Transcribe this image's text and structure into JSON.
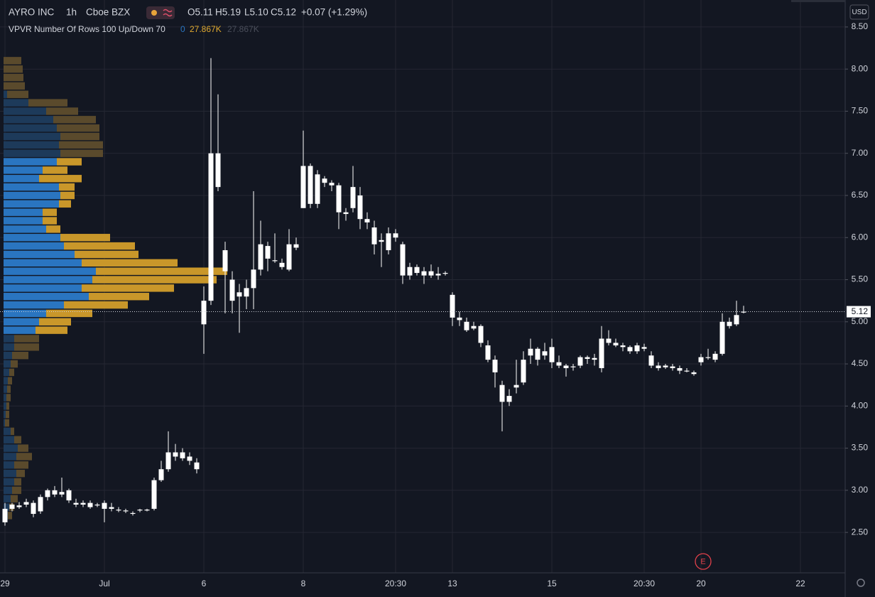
{
  "header": {
    "symbol": "AYRO INC",
    "interval": "1h",
    "exchange": "Cboe BZX",
    "ohlc": [
      "O5.11",
      "H5.19",
      "L5.10",
      "C5.12"
    ],
    "change": "+0.07 (+1.29%)",
    "indicator": "VPVR Number Of Rows 100 Up/Down 70",
    "indicator_values": [
      "0",
      "27.867K",
      "27.867K"
    ],
    "currency": "USD",
    "earnings_marker": "E"
  },
  "chart_data": {
    "type": "candlestick",
    "color": "#ffffff",
    "grid": true,
    "categories": [
      "29",
      null,
      null,
      null,
      null,
      null,
      null,
      null,
      null,
      null,
      null,
      null,
      null,
      null,
      "Jul",
      null,
      null,
      null,
      null,
      null,
      null,
      null,
      null,
      null,
      null,
      null,
      null,
      null,
      "6",
      null,
      null,
      null,
      null,
      null,
      null,
      null,
      null,
      null,
      null,
      null,
      null,
      null,
      "8",
      null,
      null,
      null,
      null,
      null,
      null,
      null,
      null,
      null,
      null,
      null,
      null,
      "20:30",
      null,
      null,
      null,
      null,
      null,
      null,
      null,
      "13",
      null,
      null,
      null,
      null,
      null,
      null,
      null,
      null,
      null,
      null,
      null,
      null,
      null,
      "15",
      null,
      null,
      null,
      null,
      null,
      null,
      null,
      null,
      null,
      null,
      null,
      null,
      "20:30",
      null,
      null,
      null,
      null,
      null,
      null,
      null,
      "20",
      null,
      null,
      null,
      null,
      null,
      null,
      null,
      null,
      null,
      null,
      null,
      null,
      null,
      "22"
    ],
    "open": [
      2.62,
      2.78,
      2.8,
      2.83,
      2.85,
      2.75,
      2.92,
      3.0,
      2.95,
      3.0,
      2.85,
      2.83,
      2.85,
      2.82,
      2.85,
      2.78,
      2.77,
      2.76,
      2.73,
      2.76,
      2.77,
      2.78,
      3.12,
      3.25,
      3.45,
      3.45,
      3.4,
      3.33,
      4.97,
      5.25,
      7.0,
      5.85,
      5.5,
      5.35,
      5.3,
      5.4,
      5.62,
      5.9,
      5.72,
      5.7,
      5.62,
      5.92,
      6.35,
      6.85,
      6.4,
      6.7,
      6.65,
      6.62,
      6.3,
      6.35,
      6.5,
      6.22,
      6.12,
      5.97,
      5.85,
      6.05,
      5.92,
      5.55,
      5.65,
      5.55,
      5.6,
      5.55,
      5.58,
      5.32,
      5.05,
      5.0,
      4.92,
      4.95,
      4.72,
      4.55,
      4.25,
      4.05,
      4.22,
      4.28,
      4.6,
      4.68,
      4.6,
      4.7,
      4.52,
      4.48,
      4.47,
      4.48,
      4.58,
      4.57,
      4.45,
      4.8,
      4.75,
      4.72,
      4.7,
      4.65,
      4.7,
      4.6,
      4.48,
      4.46,
      4.47,
      4.45,
      4.42,
      4.4,
      4.52,
      4.58,
      4.55,
      4.62,
      4.95,
      4.97,
      5.11,
      null,
      null,
      null,
      null,
      null,
      null,
      null,
      null
    ],
    "high": [
      2.85,
      2.85,
      2.86,
      2.9,
      2.88,
      2.95,
      3.02,
      3.05,
      3.15,
      3.02,
      2.9,
      2.88,
      2.88,
      2.85,
      2.88,
      2.85,
      2.8,
      2.78,
      2.75,
      2.78,
      2.78,
      3.15,
      3.35,
      3.7,
      3.55,
      3.5,
      3.45,
      3.38,
      5.42,
      8.13,
      7.7,
      5.95,
      5.6,
      5.45,
      5.5,
      6.55,
      6.2,
      5.95,
      6.05,
      5.75,
      6.1,
      6.0,
      7.27,
      6.88,
      6.8,
      6.73,
      6.68,
      6.65,
      6.35,
      6.85,
      6.6,
      6.3,
      6.2,
      6.05,
      6.12,
      6.1,
      5.95,
      5.7,
      5.68,
      5.65,
      5.68,
      5.65,
      5.6,
      5.35,
      5.12,
      5.05,
      5.0,
      4.97,
      4.78,
      4.6,
      4.3,
      4.2,
      4.55,
      4.65,
      4.8,
      4.7,
      4.75,
      4.8,
      4.6,
      4.5,
      4.5,
      4.6,
      4.6,
      4.62,
      4.95,
      4.9,
      4.8,
      4.75,
      4.72,
      4.75,
      4.74,
      4.65,
      4.52,
      4.5,
      4.5,
      4.48,
      4.45,
      4.42,
      4.62,
      4.68,
      4.65,
      5.1,
      5.05,
      5.25,
      5.19,
      null,
      null,
      null,
      null,
      null,
      null,
      null,
      null
    ],
    "low": [
      2.58,
      2.75,
      2.78,
      2.8,
      2.68,
      2.72,
      2.88,
      2.92,
      2.92,
      2.85,
      2.8,
      2.8,
      2.78,
      2.8,
      2.62,
      2.75,
      2.74,
      2.73,
      2.7,
      2.74,
      2.75,
      2.76,
      3.1,
      3.22,
      3.35,
      3.35,
      3.3,
      3.2,
      4.62,
      5.2,
      6.55,
      5.1,
      5.1,
      4.87,
      5.15,
      5.15,
      5.55,
      5.6,
      5.7,
      5.62,
      5.6,
      5.85,
      6.35,
      6.35,
      6.35,
      6.6,
      6.55,
      6.1,
      6.2,
      6.3,
      6.1,
      6.1,
      5.8,
      5.65,
      5.8,
      5.95,
      5.45,
      5.5,
      5.55,
      5.45,
      5.52,
      5.5,
      5.55,
      4.95,
      4.95,
      4.88,
      4.9,
      4.7,
      4.52,
      4.22,
      3.7,
      4.0,
      4.15,
      4.25,
      4.5,
      4.48,
      4.55,
      4.45,
      4.45,
      4.35,
      4.42,
      4.45,
      4.5,
      4.48,
      4.4,
      4.72,
      4.7,
      4.65,
      4.62,
      4.62,
      4.65,
      4.45,
      4.42,
      4.44,
      4.42,
      4.38,
      4.4,
      4.36,
      4.48,
      4.55,
      4.52,
      4.6,
      4.92,
      4.95,
      5.1,
      null,
      null,
      null,
      null,
      null,
      null,
      null,
      null
    ],
    "close": [
      2.78,
      2.83,
      2.82,
      2.86,
      2.72,
      2.92,
      3.0,
      2.95,
      2.98,
      2.88,
      2.83,
      2.85,
      2.8,
      2.83,
      2.78,
      2.8,
      2.76,
      2.75,
      2.72,
      2.77,
      2.76,
      3.12,
      3.25,
      3.45,
      3.4,
      3.38,
      3.35,
      3.25,
      5.25,
      7.0,
      6.6,
      5.6,
      5.25,
      5.3,
      5.4,
      5.62,
      5.92,
      5.75,
      5.73,
      5.65,
      5.92,
      5.88,
      6.85,
      6.4,
      6.75,
      6.65,
      6.62,
      6.3,
      6.28,
      6.6,
      6.22,
      6.18,
      5.92,
      5.95,
      6.05,
      6.0,
      5.55,
      5.65,
      5.58,
      5.6,
      5.55,
      5.57,
      5.57,
      5.05,
      5.02,
      4.9,
      4.95,
      4.75,
      4.55,
      4.4,
      4.05,
      4.12,
      4.25,
      4.55,
      4.68,
      4.55,
      4.65,
      4.52,
      4.48,
      4.45,
      4.46,
      4.58,
      4.56,
      4.55,
      4.8,
      4.75,
      4.72,
      4.7,
      4.65,
      4.72,
      4.68,
      4.48,
      4.45,
      4.48,
      4.45,
      4.42,
      4.41,
      4.38,
      4.58,
      4.57,
      4.62,
      5.0,
      5.0,
      5.08,
      5.12,
      null,
      null,
      null,
      null,
      null,
      null,
      null,
      null
    ],
    "ylim": [
      2.02,
      8.82
    ],
    "yticks": [
      {
        "value": 2.5,
        "label": "2.50"
      },
      {
        "value": 3,
        "label": "3.00"
      },
      {
        "value": 3.5,
        "label": "3.50"
      },
      {
        "value": 4,
        "label": "4.00"
      },
      {
        "value": 4.5,
        "label": "4.50"
      },
      {
        "value": 5,
        "label": "5.00"
      },
      {
        "value": 5.5,
        "label": "5.50"
      },
      {
        "value": 6,
        "label": "6.00"
      },
      {
        "value": 6.5,
        "label": "6.50"
      },
      {
        "value": 7,
        "label": "7.00"
      },
      {
        "value": 7.5,
        "label": "7.50"
      },
      {
        "value": 8,
        "label": "8.00"
      },
      {
        "value": 8.5,
        "label": "8.50"
      }
    ],
    "last_price": 5.12,
    "volume_profile": {
      "xlim": [
        0,
        330
      ],
      "value_area": [
        4.85,
        6.95
      ],
      "up_color": "#2a75c0",
      "down_color": "#c9972a",
      "up_color_dim": "#1d3a5a",
      "down_color_dim": "#5a4a2c",
      "price_levels": [
        8.1,
        8.0,
        7.9,
        7.8,
        7.7,
        7.6,
        7.5,
        7.4,
        7.3,
        7.2,
        7.1,
        7.0,
        6.9,
        6.8,
        6.7,
        6.6,
        6.5,
        6.4,
        6.3,
        6.2,
        6.1,
        6.0,
        5.9,
        5.8,
        5.7,
        5.6,
        5.5,
        5.4,
        5.3,
        5.2,
        5.1,
        5.0,
        4.9,
        4.8,
        4.7,
        4.6,
        4.5,
        4.4,
        4.3,
        4.2,
        4.1,
        4.0,
        3.9,
        3.8,
        3.7,
        3.6,
        3.5,
        3.4,
        3.3,
        3.2,
        3.1,
        3.0,
        2.9,
        2.8,
        2.7
      ],
      "up": [
        0,
        0,
        0,
        0,
        5,
        35,
        60,
        70,
        75,
        80,
        78,
        80,
        75,
        55,
        50,
        78,
        80,
        78,
        55,
        55,
        60,
        80,
        85,
        100,
        110,
        130,
        125,
        110,
        120,
        85,
        60,
        50,
        45,
        15,
        15,
        12,
        10,
        8,
        6,
        5,
        4,
        4,
        3,
        2,
        10,
        15,
        20,
        18,
        15,
        18,
        15,
        12,
        10,
        8,
        6
      ],
      "down": [
        25,
        27,
        28,
        30,
        30,
        55,
        45,
        60,
        60,
        55,
        62,
        60,
        35,
        35,
        60,
        22,
        20,
        17,
        20,
        20,
        20,
        70,
        100,
        90,
        135,
        185,
        175,
        130,
        85,
        90,
        65,
        45,
        45,
        35,
        35,
        23,
        10,
        7,
        6,
        5,
        6,
        4,
        5,
        6,
        5,
        10,
        15,
        22,
        20,
        12,
        10,
        13,
        10,
        7,
        6
      ]
    }
  }
}
